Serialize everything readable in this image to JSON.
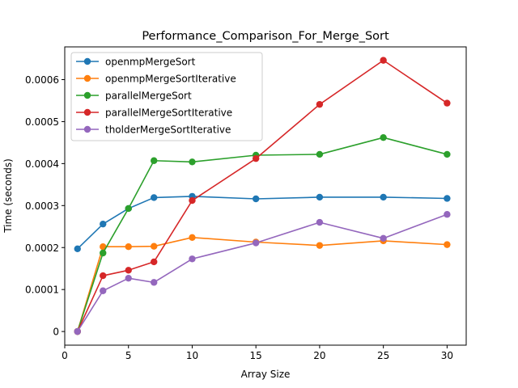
{
  "chart_data": {
    "type": "line",
    "title": "Performance_Comparison_For_Merge_Sort",
    "xlabel": "Array Size",
    "ylabel": "Time (seconds)",
    "xlim": [
      0,
      31.5
    ],
    "ylim": [
      -3.25e-05,
      0.000678
    ],
    "xticks": [
      0,
      5,
      10,
      15,
      20,
      25,
      30
    ],
    "xtick_labels": [
      "0",
      "5",
      "10",
      "15",
      "20",
      "25",
      "30"
    ],
    "yticks": [
      0,
      0.0001,
      0.0002,
      0.0003,
      0.0004,
      0.0005,
      0.0006
    ],
    "ytick_labels": [
      "0",
      "0.0001",
      "0.0002",
      "0.0003",
      "0.0004",
      "0.0005",
      "0.0006"
    ],
    "x": [
      1,
      3,
      5,
      7,
      10,
      15,
      20,
      25,
      30
    ],
    "legend_position": "upper-left",
    "grid": false,
    "series": [
      {
        "name": "openmpMergeSort",
        "color": "#1f77b4",
        "values": [
          0.000197,
          0.000256,
          0.000293,
          0.000319,
          0.000322,
          0.000316,
          0.00032,
          0.00032,
          0.000317
        ]
      },
      {
        "name": "openmpMergeSortIterative",
        "color": "#ff7f0e",
        "values": [
          0.0,
          0.000202,
          0.000202,
          0.000203,
          0.000224,
          0.000213,
          0.000205,
          0.000216,
          0.000207
        ]
      },
      {
        "name": "parallelMergeSort",
        "color": "#2ca02c",
        "values": [
          0.0,
          0.000187,
          0.000293,
          0.000407,
          0.000404,
          0.00042,
          0.000422,
          0.000462,
          0.000422
        ]
      },
      {
        "name": "parallelMergeSortIterative",
        "color": "#d62728",
        "values": [
          0.0,
          0.000133,
          0.000146,
          0.000166,
          0.000312,
          0.000412,
          0.000541,
          0.000646,
          0.000544
        ]
      },
      {
        "name": "tholderMergeSortIterative",
        "color": "#9467bd",
        "values": [
          0.0,
          9.7e-05,
          0.000127,
          0.000117,
          0.000173,
          0.000211,
          0.00026,
          0.000222,
          0.000279
        ]
      }
    ]
  }
}
